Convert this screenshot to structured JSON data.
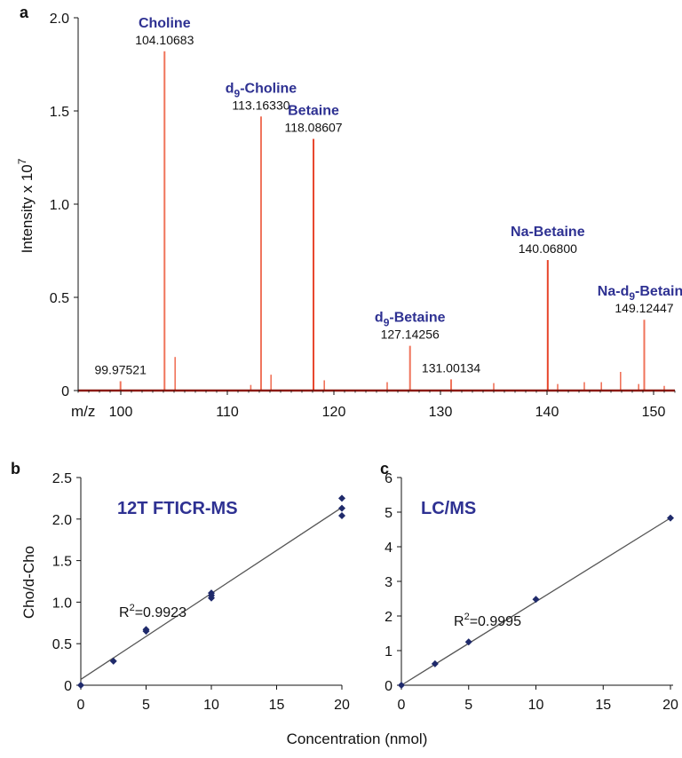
{
  "colors": {
    "peak": "#f0735a",
    "peak_strong": "#e8452b",
    "baseline": "#8b1a10",
    "label": "#2e3192",
    "marker": "#1f2a6b",
    "fit": "#555555"
  },
  "chart_data": [
    {
      "panel": "a",
      "type": "line",
      "xlabel_prefix": "m/z",
      "ylabel": "Intensity x 10",
      "ylabel_exp": "7",
      "xlim": [
        96,
        152
      ],
      "ylim": [
        0,
        2.0
      ],
      "x_ticks": [
        100,
        110,
        120,
        130,
        140,
        150
      ],
      "y_ticks": [
        "0",
        "0.5",
        "1.0",
        "1.5",
        "2.0"
      ],
      "labeled_peaks": [
        {
          "mz": 99.97521,
          "intensity": 0.05,
          "name": "",
          "name_sub": "",
          "name_after": "",
          "mz_label": "99.97521",
          "strong": false
        },
        {
          "mz": 104.10683,
          "intensity": 1.82,
          "name": "Choline",
          "name_sub": "",
          "name_after": "",
          "mz_label": "104.10683",
          "strong": false
        },
        {
          "mz": 113.1633,
          "intensity": 1.47,
          "name": "d",
          "name_sub": "9",
          "name_after": "-Choline",
          "mz_label": "113.16330",
          "strong": false
        },
        {
          "mz": 118.08607,
          "intensity": 1.35,
          "name": "Betaine",
          "name_sub": "",
          "name_after": "",
          "mz_label": "118.08607",
          "strong": true
        },
        {
          "mz": 127.14256,
          "intensity": 0.24,
          "name": "d",
          "name_sub": "9",
          "name_after": "-Betaine",
          "mz_label": "127.14256",
          "strong": false
        },
        {
          "mz": 131.00134,
          "intensity": 0.06,
          "name": "",
          "name_sub": "",
          "name_after": "",
          "mz_label": "131.00134",
          "strong": false
        },
        {
          "mz": 140.068,
          "intensity": 0.7,
          "name": "Na-Betaine",
          "name_sub": "",
          "name_after": "",
          "mz_label": "140.06800",
          "strong": true
        },
        {
          "mz": 149.12447,
          "intensity": 0.38,
          "name": "Na-d",
          "name_sub": "9",
          "name_after": "-Betaine",
          "mz_label": "149.12447",
          "strong": false
        }
      ],
      "minor_peaks": [
        {
          "mz": 105.1,
          "intensity": 0.18
        },
        {
          "mz": 114.1,
          "intensity": 0.085
        },
        {
          "mz": 119.1,
          "intensity": 0.055
        },
        {
          "mz": 112.2,
          "intensity": 0.03
        },
        {
          "mz": 125.0,
          "intensity": 0.045
        },
        {
          "mz": 135.0,
          "intensity": 0.04
        },
        {
          "mz": 141.0,
          "intensity": 0.035
        },
        {
          "mz": 143.5,
          "intensity": 0.045
        },
        {
          "mz": 145.1,
          "intensity": 0.045
        },
        {
          "mz": 146.9,
          "intensity": 0.1
        },
        {
          "mz": 148.6,
          "intensity": 0.035
        },
        {
          "mz": 151.0,
          "intensity": 0.025
        }
      ]
    },
    {
      "panel": "b",
      "type": "scatter",
      "title": "12T FTICR-MS",
      "ylabel": "Cho/d-Cho",
      "xlim": [
        0,
        20
      ],
      "ylim": [
        0,
        2.5
      ],
      "x_ticks": [
        "0",
        "5",
        "10",
        "15",
        "20"
      ],
      "y_ticks": [
        "0",
        "0.5",
        "1.0",
        "1.5",
        "2.0",
        "2.5"
      ],
      "points": [
        [
          0,
          0.0
        ],
        [
          2.5,
          0.29
        ],
        [
          5,
          0.65
        ],
        [
          5,
          0.67
        ],
        [
          10,
          1.05
        ],
        [
          10,
          1.08
        ],
        [
          10,
          1.11
        ],
        [
          20,
          2.04
        ],
        [
          20,
          2.13
        ],
        [
          20,
          2.25
        ]
      ],
      "fit": {
        "slope": 0.1035,
        "intercept": 0.07
      },
      "r2_prefix": "R",
      "r2_exp": "2",
      "r2_value": "=0.9923"
    },
    {
      "panel": "c",
      "type": "scatter",
      "title": "LC/MS",
      "xlim": [
        0,
        20
      ],
      "ylim": [
        0,
        6
      ],
      "x_ticks": [
        "0",
        "5",
        "10",
        "15",
        "20"
      ],
      "y_ticks": [
        "0",
        "1",
        "2",
        "3",
        "4",
        "5",
        "6"
      ],
      "points": [
        [
          0,
          0.0
        ],
        [
          2.5,
          0.62
        ],
        [
          5,
          1.25
        ],
        [
          10,
          2.48
        ],
        [
          20,
          4.83
        ]
      ],
      "fit": {
        "slope": 0.2415,
        "intercept": 0.0
      },
      "r2_prefix": "R",
      "r2_exp": "2",
      "r2_value": "=0.9995"
    }
  ],
  "shared_xlabel": "Concentration (nmol)"
}
